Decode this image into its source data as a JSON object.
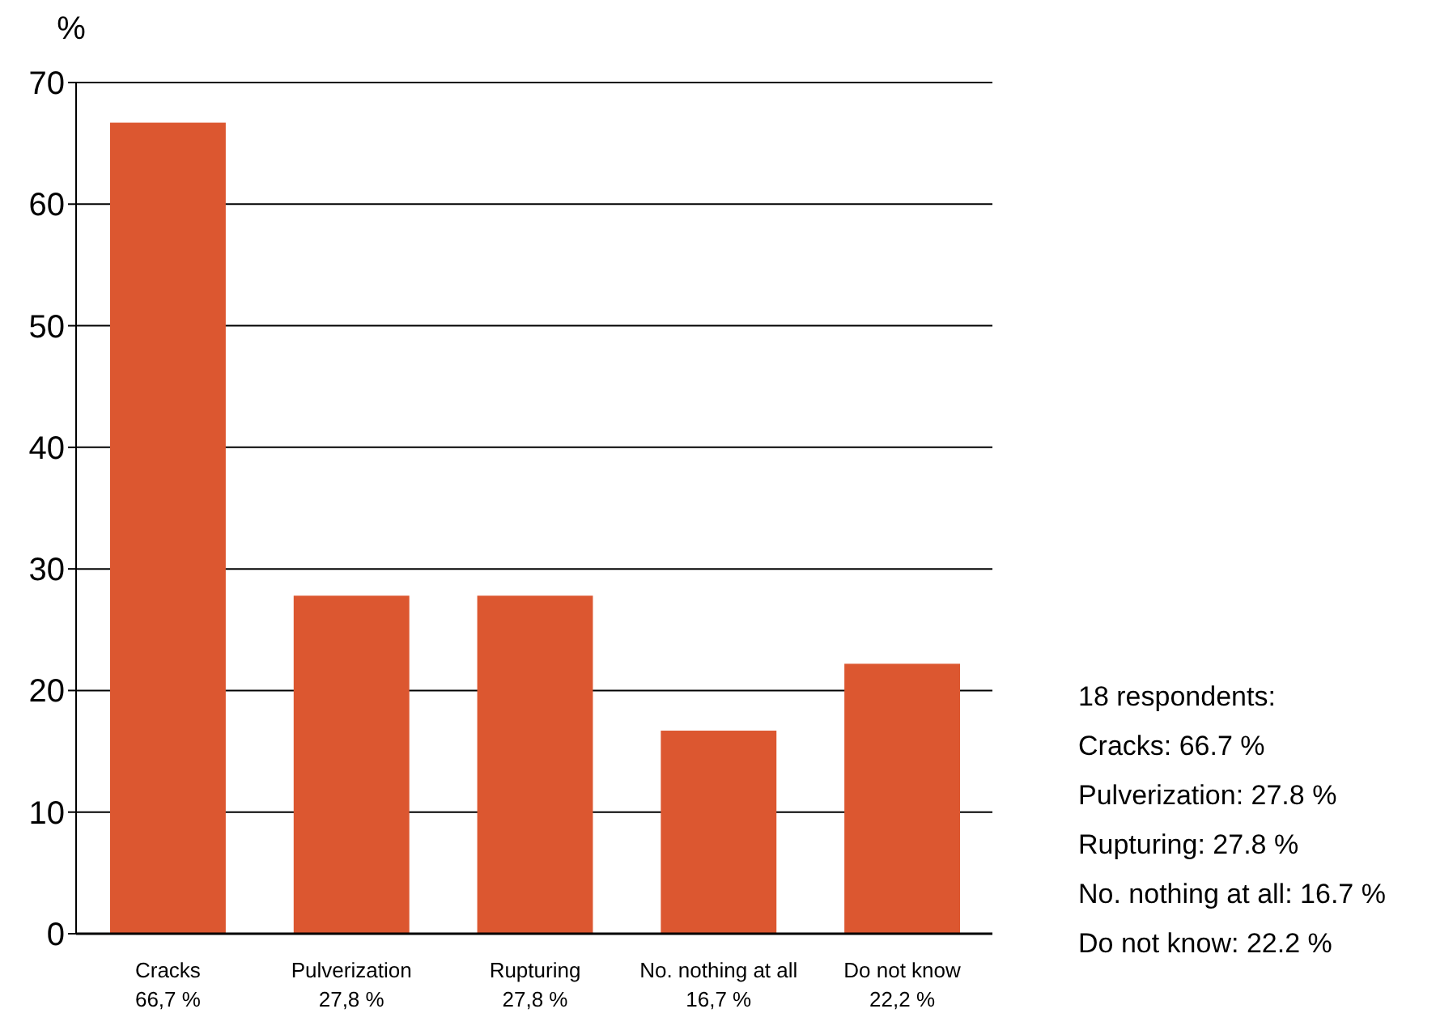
{
  "chart_data": {
    "type": "bar",
    "ylabel": "%",
    "categories": [
      "Cracks",
      "Pulverization",
      "Rupturing",
      "No. nothing at all",
      "Do not know"
    ],
    "values": [
      66.7,
      27.8,
      27.8,
      16.7,
      22.2
    ],
    "value_labels": [
      "66,7 %",
      "27,8 %",
      "27,8 %",
      "16,7 %",
      "22,2 %"
    ],
    "color": "#dc5730",
    "ylim": [
      0,
      70
    ],
    "yticks": [
      0,
      10,
      20,
      30,
      40,
      50,
      60,
      70
    ],
    "grid": "y",
    "annotations": [
      "18 respondents:",
      "Cracks: 66.7 %",
      "Pulverization: 27.8 %",
      "Rupturing: 27.8 %",
      "No. nothing at all: 16.7 %",
      "Do not know: 22.2 %"
    ]
  }
}
